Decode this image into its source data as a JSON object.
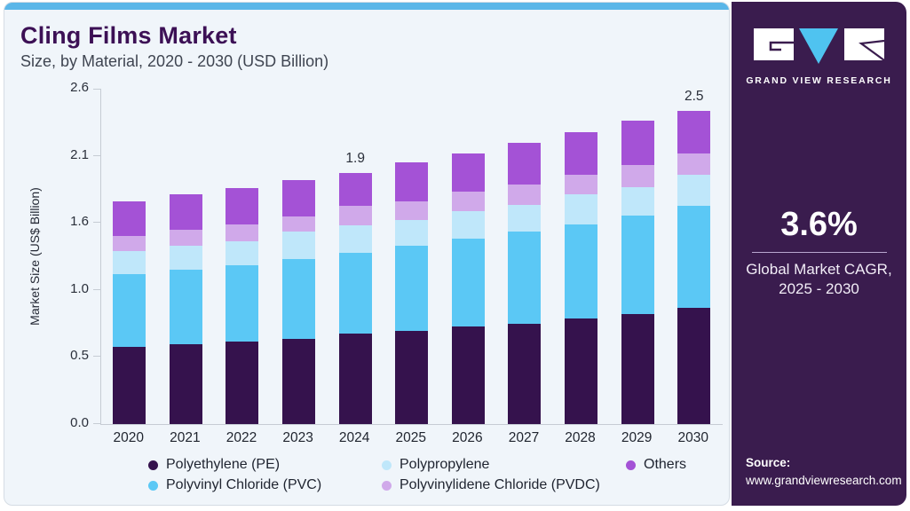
{
  "header": {
    "title": "Cling Films Market",
    "subtitle": "Size, by Material, 2020 - 2030 (USD Billion)"
  },
  "chart_data": {
    "type": "bar",
    "stacked": true,
    "title": "Cling Films Market Size, by Material, 2020 - 2030 (USD Billion)",
    "xlabel": "",
    "ylabel": "Market Size (US$ Billion)",
    "ylim": [
      0,
      2.6
    ],
    "y_ticks": [
      "0.0",
      "0.5",
      "1.0",
      "1.6",
      "2.1",
      "2.6"
    ],
    "grid": false,
    "legend_position": "bottom",
    "categories": [
      "2020",
      "2021",
      "2022",
      "2023",
      "2024",
      "2025",
      "2026",
      "2027",
      "2028",
      "2029",
      "2030"
    ],
    "series": [
      {
        "name": "Polyethylene (PE)",
        "color": "#35124d",
        "values": [
          0.6,
          0.62,
          0.64,
          0.66,
          0.7,
          0.72,
          0.76,
          0.78,
          0.82,
          0.85,
          0.9
        ]
      },
      {
        "name": "Polyvinyl Chloride (PVC)",
        "color": "#5bc8f5",
        "values": [
          0.56,
          0.58,
          0.59,
          0.62,
          0.63,
          0.66,
          0.68,
          0.71,
          0.73,
          0.77,
          0.79
        ]
      },
      {
        "name": "Polypropylene",
        "color": "#bfe7fa",
        "values": [
          0.18,
          0.18,
          0.19,
          0.21,
          0.21,
          0.2,
          0.21,
          0.21,
          0.23,
          0.22,
          0.24
        ]
      },
      {
        "name": "Polyvinylidene Chloride (PVDC)",
        "color": "#d0a9ea",
        "values": [
          0.12,
          0.13,
          0.13,
          0.12,
          0.15,
          0.15,
          0.15,
          0.16,
          0.15,
          0.17,
          0.17
        ]
      },
      {
        "name": "Others",
        "color": "#a452d6",
        "values": [
          0.27,
          0.27,
          0.28,
          0.28,
          0.26,
          0.3,
          0.3,
          0.32,
          0.33,
          0.34,
          0.33
        ]
      }
    ],
    "bar_labels": [
      "",
      "",
      "",
      "",
      "1.9",
      "",
      "",
      "",
      "",
      "",
      "2.5"
    ]
  },
  "legend": {
    "items": [
      {
        "label": "Polyethylene (PE)",
        "color": "#35124d"
      },
      {
        "label": "Polypropylene",
        "color": "#bfe7fa"
      },
      {
        "label": "Others",
        "color": "#a452d6"
      },
      {
        "label": "Polyvinyl Chloride (PVC)",
        "color": "#5bc8f5"
      },
      {
        "label": "Polyvinylidene Chloride (PVDC)",
        "color": "#d0a9ea"
      }
    ]
  },
  "sidebar": {
    "brand": "GRAND VIEW RESEARCH",
    "cagr_value": "3.6%",
    "cagr_caption_line1": "Global Market CAGR,",
    "cagr_caption_line2": "2025 - 2030",
    "source_label": "Source:",
    "source_url": "www.grandviewresearch.com"
  },
  "theme": {
    "accent_blue": "#5ab6e8",
    "panel_purple": "#3a1c4e",
    "card_bg": "#f0f5fa",
    "card_border": "#d5dce4",
    "axis_color": "#c6ccd4",
    "title_purple": "#3c1055",
    "logo_triangle_blue": "#4fc3f0"
  }
}
